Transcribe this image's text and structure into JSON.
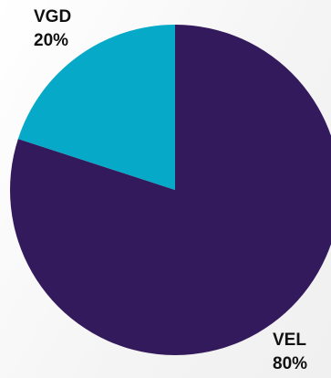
{
  "chart_data": {
    "type": "pie",
    "slices": [
      {
        "label": "VEL",
        "value": 80,
        "value_label": "80%",
        "color": "#321a5c"
      },
      {
        "label": "VGD",
        "value": 20,
        "value_label": "20%",
        "color": "#06a9c8"
      }
    ],
    "start_angle_deg": 0,
    "direction": "clockwise"
  }
}
